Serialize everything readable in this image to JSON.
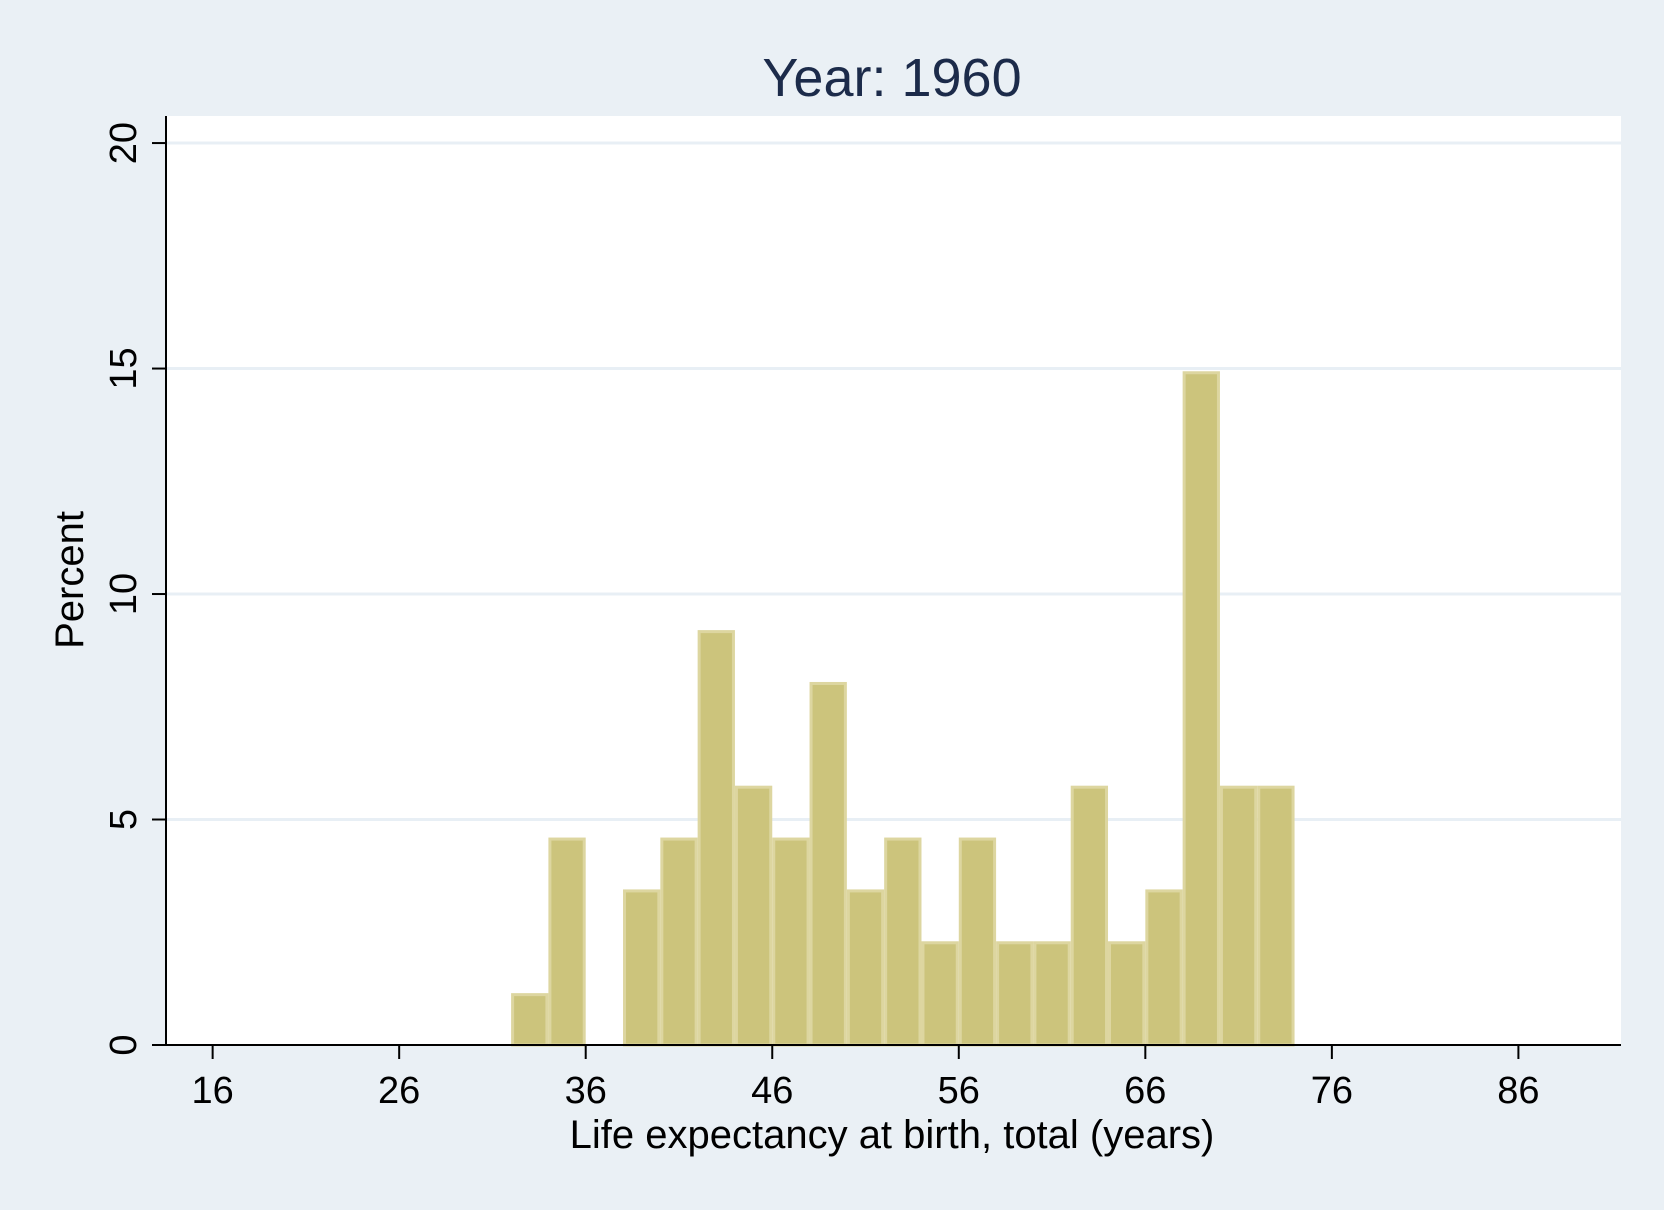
{
  "chart_data": {
    "type": "bar",
    "title": "Year: 1960",
    "xlabel": "Life expectancy at birth, total (years)",
    "ylabel": "Percent",
    "xlim": [
      13.5,
      91.5
    ],
    "ylim": [
      0,
      20.6
    ],
    "xticks": [
      16,
      26,
      36,
      46,
      56,
      66,
      76,
      86
    ],
    "yticks": [
      0,
      5,
      10,
      15,
      20
    ],
    "grid": true,
    "bin_width": 2,
    "series": [
      {
        "bins": [
          {
            "x0": 32,
            "x1": 34,
            "value": 1.15
          },
          {
            "x0": 34,
            "x1": 36,
            "value": 4.6
          },
          {
            "x0": 38,
            "x1": 40,
            "value": 3.45
          },
          {
            "x0": 40,
            "x1": 42,
            "value": 4.6
          },
          {
            "x0": 42,
            "x1": 44,
            "value": 9.2
          },
          {
            "x0": 44,
            "x1": 46,
            "value": 5.75
          },
          {
            "x0": 46,
            "x1": 48,
            "value": 4.6
          },
          {
            "x0": 48,
            "x1": 50,
            "value": 8.05
          },
          {
            "x0": 50,
            "x1": 52,
            "value": 3.45
          },
          {
            "x0": 52,
            "x1": 54,
            "value": 4.6
          },
          {
            "x0": 54,
            "x1": 56,
            "value": 2.3
          },
          {
            "x0": 56,
            "x1": 58,
            "value": 4.6
          },
          {
            "x0": 58,
            "x1": 60,
            "value": 2.3
          },
          {
            "x0": 60,
            "x1": 62,
            "value": 2.3
          },
          {
            "x0": 62,
            "x1": 64,
            "value": 5.75
          },
          {
            "x0": 64,
            "x1": 66,
            "value": 2.3
          },
          {
            "x0": 66,
            "x1": 68,
            "value": 3.45
          },
          {
            "x0": 68,
            "x1": 70,
            "value": 14.94
          },
          {
            "x0": 70,
            "x1": 72,
            "value": 5.75
          },
          {
            "x0": 72,
            "x1": 74,
            "value": 5.75
          }
        ]
      }
    ],
    "colors": {
      "background": "#eaf0f5",
      "plot_area": "#ffffff",
      "bar_fill": "#ccc47c",
      "bar_stroke": "#ddd6a0",
      "gridline": "#e8eff5",
      "title": "#1c2b4a"
    }
  }
}
